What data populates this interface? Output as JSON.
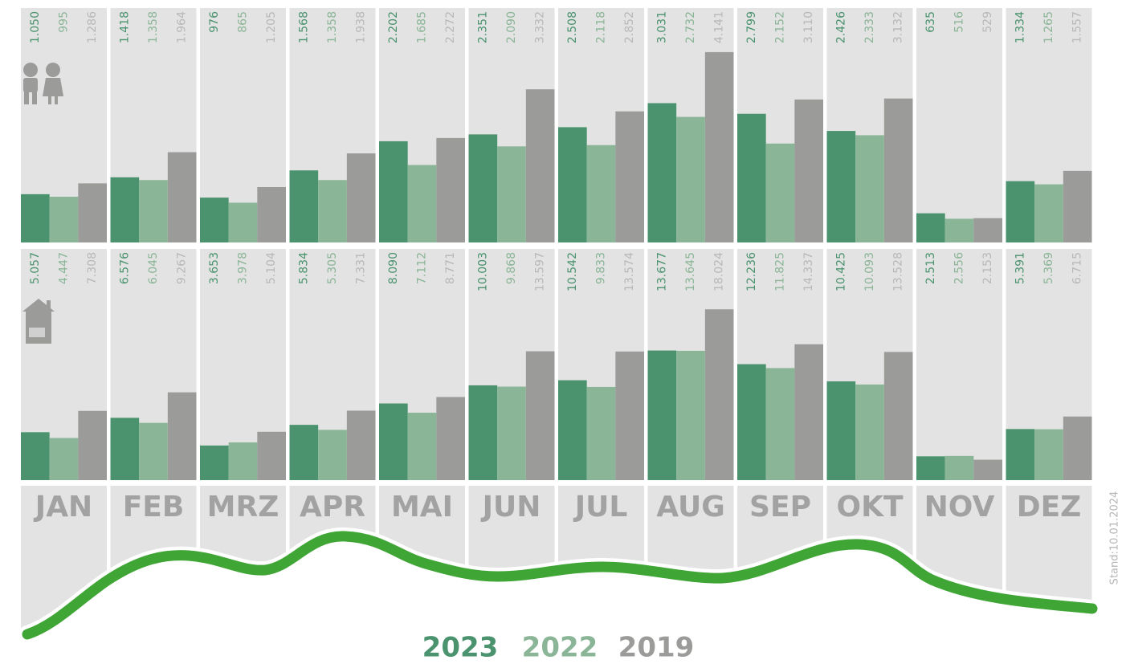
{
  "chart_data": {
    "type": "bar",
    "categories": [
      "JAN",
      "FEB",
      "MRZ",
      "APR",
      "MAI",
      "JUN",
      "JUL",
      "AUG",
      "SEP",
      "OKT",
      "NOV",
      "DEZ"
    ],
    "legend": [
      {
        "name": "2023",
        "color": "#4a936e",
        "label_color": "#4a936e"
      },
      {
        "name": "2022",
        "color": "#8ab596",
        "label_color": "#8ab596"
      },
      {
        "name": "2019",
        "color": "#9b9b9a",
        "label_color": "#b8b8b8"
      }
    ],
    "panels": [
      {
        "ylim": [
          0,
          5100
        ],
        "series": [
          {
            "values": [
              1050,
              1418,
              976,
              1568,
              2202,
              2351,
              2508,
              3031,
              2799,
              2426,
              635,
              1334
            ],
            "value_labels": [
              "1.050",
              "1.418",
              "976",
              "1.568",
              "2.202",
              "2.351",
              "2.508",
              "3.031",
              "2.799",
              "2.426",
              "635",
              "1.334"
            ]
          },
          {
            "values": [
              995,
              1358,
              865,
              1358,
              1685,
              2090,
              2118,
              2732,
              2152,
              2333,
              516,
              1265
            ],
            "value_labels": [
              "995",
              "1.358",
              "865",
              "1.358",
              "1.685",
              "2.090",
              "2.118",
              "2.732",
              "2.152",
              "2.333",
              "516",
              "1.265"
            ]
          },
          {
            "values": [
              1286,
              1964,
              1205,
              1938,
              2272,
              3332,
              2852,
              4141,
              3110,
              3132,
              529,
              1557
            ],
            "value_labels": [
              "1.286",
              "1.964",
              "1.205",
              "1.938",
              "2.272",
              "3.332",
              "2.852",
              "4.141",
              "3.110",
              "3.132",
              "529",
              "1.557"
            ]
          }
        ]
      },
      {
        "ylim": [
          0,
          24400
        ],
        "series": [
          {
            "values": [
              5057,
              6576,
              3653,
              5834,
              8090,
              10003,
              10542,
              13677,
              12236,
              10425,
              2513,
              5391
            ],
            "value_labels": [
              "5.057",
              "6.576",
              "3.653",
              "5.834",
              "8.090",
              "10.003",
              "10.542",
              "13.677",
              "12.236",
              "10.425",
              "2.513",
              "5.391"
            ]
          },
          {
            "values": [
              4447,
              6045,
              3978,
              5305,
              7112,
              9868,
              9833,
              13645,
              11825,
              10093,
              2556,
              5369
            ],
            "value_labels": [
              "4.447",
              "6.045",
              "3.978",
              "5.305",
              "7.112",
              "9.868",
              "9.833",
              "13.645",
              "11.825",
              "10.093",
              "2.556",
              "5.369"
            ]
          },
          {
            "values": [
              7308,
              9267,
              5104,
              7331,
              8771,
              13597,
              13574,
              18024,
              14337,
              13528,
              2153,
              6715
            ],
            "value_labels": [
              "7.308",
              "9.267",
              "5.104",
              "7.331",
              "8.771",
              "13.597",
              "13.574",
              "18.024",
              "14.337",
              "13.528",
              "2.153",
              "6.715"
            ]
          }
        ]
      }
    ],
    "note": "Stand:10.01.2024"
  }
}
